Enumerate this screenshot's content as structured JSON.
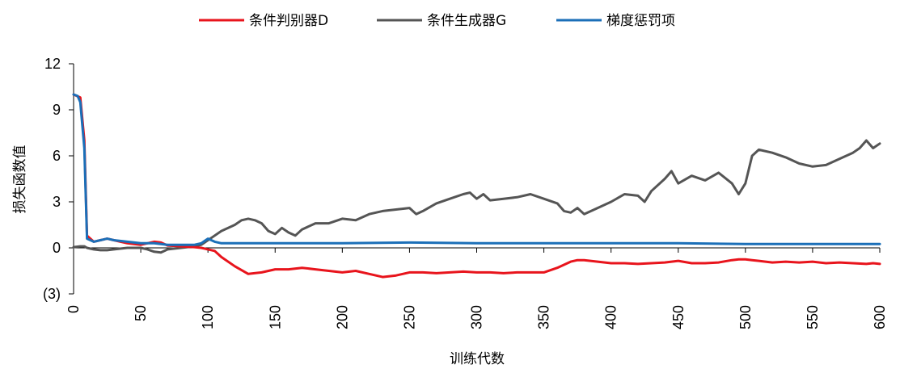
{
  "chart_data": {
    "type": "line",
    "xlabel": "训练代数",
    "ylabel": "损失函数值",
    "xlim": [
      0,
      600
    ],
    "ylim": [
      -3,
      12
    ],
    "x_ticks": [
      0,
      50,
      100,
      150,
      200,
      250,
      300,
      350,
      400,
      450,
      500,
      550,
      600
    ],
    "x_tick_labels": [
      "0",
      "50",
      "100",
      "150",
      "200",
      "250",
      "300",
      "350",
      "400",
      "450",
      "500",
      "550",
      "600"
    ],
    "y_ticks": [
      -3,
      0,
      3,
      6,
      9,
      12
    ],
    "y_tick_labels": [
      "(3)",
      "0",
      "3",
      "6",
      "9",
      "12"
    ],
    "grid": false,
    "legend_position": "top-center",
    "series": [
      {
        "name": "条件判别器D",
        "color": "#e8141c",
        "x": [
          0,
          5,
          8,
          10,
          15,
          20,
          25,
          30,
          40,
          50,
          60,
          65,
          70,
          80,
          90,
          95,
          100,
          105,
          110,
          120,
          130,
          140,
          150,
          160,
          170,
          180,
          190,
          200,
          210,
          220,
          230,
          240,
          250,
          260,
          270,
          280,
          290,
          300,
          310,
          320,
          330,
          340,
          350,
          360,
          370,
          375,
          380,
          390,
          400,
          410,
          420,
          430,
          440,
          450,
          460,
          470,
          480,
          490,
          495,
          500,
          505,
          510,
          520,
          530,
          540,
          550,
          560,
          570,
          580,
          590,
          595,
          600
        ],
        "y": [
          10,
          9.8,
          7.0,
          0.8,
          0.4,
          0.5,
          0.6,
          0.5,
          0.3,
          0.2,
          0.4,
          0.35,
          0.15,
          0.1,
          0.05,
          0.0,
          -0.1,
          -0.2,
          -0.6,
          -1.2,
          -1.7,
          -1.6,
          -1.4,
          -1.4,
          -1.3,
          -1.4,
          -1.5,
          -1.6,
          -1.5,
          -1.7,
          -1.9,
          -1.8,
          -1.6,
          -1.6,
          -1.65,
          -1.6,
          -1.55,
          -1.6,
          -1.6,
          -1.65,
          -1.6,
          -1.6,
          -1.6,
          -1.3,
          -0.9,
          -0.8,
          -0.8,
          -0.9,
          -1.0,
          -1.0,
          -1.05,
          -1.0,
          -0.95,
          -0.85,
          -1.0,
          -1.0,
          -0.95,
          -0.8,
          -0.75,
          -0.75,
          -0.8,
          -0.85,
          -0.95,
          -0.9,
          -0.95,
          -0.9,
          -1.0,
          -0.95,
          -1.0,
          -1.05,
          -1.0,
          -1.05
        ]
      },
      {
        "name": "条件生成器G",
        "color": "#555555",
        "x": [
          0,
          5,
          8,
          10,
          15,
          20,
          25,
          30,
          40,
          50,
          55,
          60,
          65,
          70,
          80,
          90,
          95,
          100,
          105,
          110,
          120,
          125,
          130,
          135,
          140,
          145,
          150,
          155,
          160,
          165,
          170,
          180,
          190,
          200,
          210,
          220,
          230,
          240,
          250,
          255,
          260,
          270,
          280,
          290,
          295,
          300,
          305,
          310,
          320,
          330,
          340,
          350,
          360,
          365,
          370,
          375,
          380,
          390,
          400,
          410,
          420,
          425,
          430,
          440,
          445,
          450,
          460,
          470,
          480,
          490,
          495,
          500,
          505,
          510,
          520,
          530,
          540,
          550,
          560,
          570,
          580,
          585,
          590,
          595,
          600
        ],
        "y": [
          0.05,
          0.1,
          0.1,
          0.0,
          -0.1,
          -0.15,
          -0.15,
          -0.1,
          0.0,
          0.0,
          -0.1,
          -0.25,
          -0.3,
          -0.1,
          0.0,
          0.1,
          0.2,
          0.5,
          0.8,
          1.1,
          1.5,
          1.8,
          1.9,
          1.8,
          1.6,
          1.1,
          0.9,
          1.3,
          1.0,
          0.8,
          1.2,
          1.6,
          1.6,
          1.9,
          1.8,
          2.2,
          2.4,
          2.5,
          2.6,
          2.2,
          2.4,
          2.9,
          3.2,
          3.5,
          3.6,
          3.2,
          3.5,
          3.1,
          3.2,
          3.3,
          3.5,
          3.2,
          2.9,
          2.4,
          2.3,
          2.6,
          2.2,
          2.6,
          3.0,
          3.5,
          3.4,
          3.0,
          3.7,
          4.5,
          5.0,
          4.2,
          4.7,
          4.4,
          4.9,
          4.2,
          3.5,
          4.2,
          6.0,
          6.4,
          6.2,
          5.9,
          5.5,
          5.3,
          5.4,
          5.8,
          6.2,
          6.5,
          7.0,
          6.5,
          6.8
        ]
      },
      {
        "name": "梯度惩罚项",
        "color": "#1b6fb8",
        "x": [
          0,
          3,
          5,
          8,
          10,
          15,
          20,
          25,
          30,
          40,
          50,
          60,
          70,
          80,
          90,
          95,
          100,
          105,
          110,
          120,
          150,
          200,
          250,
          300,
          350,
          400,
          450,
          500,
          550,
          600
        ],
        "y": [
          10,
          9.9,
          9.5,
          6.5,
          0.6,
          0.4,
          0.5,
          0.6,
          0.5,
          0.4,
          0.3,
          0.3,
          0.2,
          0.2,
          0.2,
          0.3,
          0.6,
          0.4,
          0.3,
          0.3,
          0.3,
          0.3,
          0.35,
          0.3,
          0.3,
          0.3,
          0.3,
          0.25,
          0.25,
          0.25
        ]
      }
    ]
  }
}
